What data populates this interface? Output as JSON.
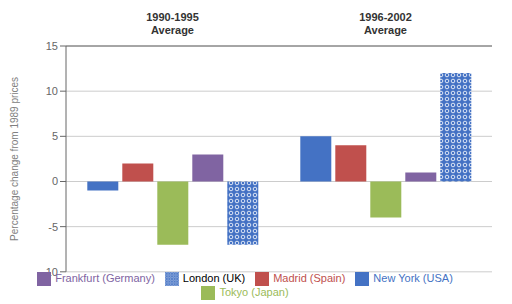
{
  "chart_data": {
    "type": "bar",
    "categories": [
      "1990-1995\nAverage",
      "1996-2002\nAverage"
    ],
    "series": [
      {
        "name": "New York (USA)",
        "color": "#4472C4",
        "values": [
          -1,
          5
        ]
      },
      {
        "name": "Madrid (Spain)",
        "color": "#C0504D",
        "values": [
          2,
          4
        ]
      },
      {
        "name": "Tokyo (Japan)",
        "color": "#9BBB59",
        "values": [
          -7,
          -4
        ]
      },
      {
        "name": "Frankfurt (Germany)",
        "color": "#8064A2",
        "values": [
          3,
          1
        ]
      },
      {
        "name": "London (UK)",
        "color": "#4472C4",
        "values": [
          -7,
          12
        ]
      }
    ],
    "ylabel": "Percentage change from 1989 prices",
    "ylim": [
      -10,
      15
    ],
    "yticks": [
      -10,
      -5,
      0,
      5,
      10,
      15
    ],
    "grid": true,
    "legend": "bottom"
  }
}
